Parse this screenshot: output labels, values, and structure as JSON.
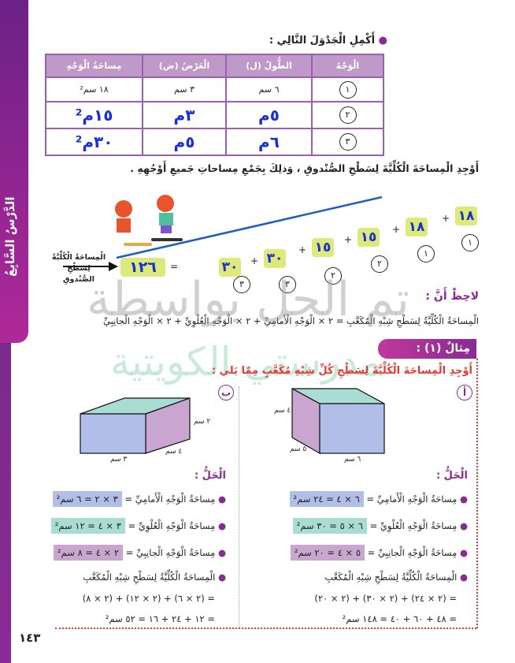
{
  "lesson_tab": "الدَّرْسُ السَّابِعُ",
  "task1": "أَكْمِلِ الْجَدْوَلَ التَّالِي :",
  "table": {
    "headers": [
      "الْوَجْهُ",
      "الطُّولُ (ل)",
      "الْعَرْضُ (ض)",
      "مِساحَةُ الْوَجْهِ"
    ],
    "rows": [
      {
        "face": "١",
        "length": "٦ سم",
        "width": "٣ سم",
        "area": "١٨ سم²"
      },
      {
        "face": "٢",
        "length": "٥م",
        "width": "٣م",
        "area": "١٥م²"
      },
      {
        "face": "٣",
        "length": "٦م",
        "width": "٥م",
        "area": "٣٠م²"
      }
    ]
  },
  "task2": "أَوْجِدِ الْمِساحَةَ الْكُلِّيَّةَ لِسَطْحِ الصُّنْدوقِ ، وَذلِكَ بِجَمْعِ مِساحاتِ جَميعِ أَوْجُهِهِ .",
  "sum": {
    "terms": [
      {
        "value": "١٨",
        "face": "١"
      },
      {
        "value": "١٨",
        "face": "١"
      },
      {
        "value": "١٥",
        "face": "٢"
      },
      {
        "value": "١٥",
        "face": "٢"
      },
      {
        "value": "٣٠",
        "face": "٣"
      },
      {
        "value": "٣٠",
        "face": "٣"
      }
    ],
    "plus": "+",
    "equals": "=",
    "total": "١٢٦",
    "total_label_1": "الْمِساحَةُ الْكُلِّيَّةُ",
    "total_label_2": "لِسَطْحِ الصُّنْدوقِ"
  },
  "note_title": "لاحِظْ أَنَّ :",
  "note_text": "الْمِساحَةُ الْكُلِّيَّةُ لِسَطْحِ شِبْهِ الْمُكَعَّبِ = ٢ × الْوَجْهِ الْأَمامِيِّ + ٢ × الْوَجْهِ الْعُلْوِيِّ + ٢ × الْوَجْهِ الْجانِبِيِّ",
  "watermark_1": "تم الحل بواسطة",
  "watermark_2": "مدرستي الكويتية",
  "example_title": "مِثالٌ (١) :",
  "example_task": "أَوْجِدِ الْمِساحَةَ الْكُلِّيَّةَ لِسَطْحِ كُلِّ شِبْهِ مُكَعَّبٍ مِمّا يَلي :",
  "part_a": {
    "label": "أ",
    "dims": {
      "height": "٤ سم",
      "depth": "٥ سم",
      "length": "٦ سم"
    },
    "solution_title": "الْحَلُّ :",
    "lines": [
      "مِساحَةُ الْوَجْهِ الْأَمامِيِّ =",
      "مِساحَةُ الْوَجْهِ الْعُلْوِيِّ =",
      "مِساحَةُ الْوَجْهِ الْجانِبِيِّ ="
    ],
    "values": [
      "٦ × ٤ = ٢٤ سم²",
      "٦ × ٥ = ٣٠ سم²",
      "٥ × ٤ = ٢٠ سم²"
    ],
    "total_label": "الْمِساحَةُ الْكُلِّيَّةُ لِسَطْحِ شِبْهِ الْمُكَعَّبِ",
    "step1": "= (٢ × ٢٤) + (٢ × ٣٠) + (٢ × ٢٠)",
    "step2": "= ٤٨ + ٦٠ + ٤٠ = ١٤٨ سم²"
  },
  "part_b": {
    "label": "ب",
    "dims": {
      "height": "٢ سم",
      "depth": "٤ سم",
      "length": "٣ سم"
    },
    "solution_title": "الْحَلُّ :",
    "lines": [
      "مِساحَةُ الْوَجْهِ الْأَمامِيِّ =",
      "مِساحَةُ الْوَجْهِ الْعُلْوِيِّ =",
      "مِساحَةُ الْوَجْهِ الْجانِبِيِّ ="
    ],
    "values": [
      "٣ × ٢ = ٦ سم²",
      "٣ × ٤ = ١٢ سم²",
      "٢ × ٤ = ٨ سم²"
    ],
    "total_label": "الْمِساحَةُ الْكُلِّيَّةُ لِسَطْحِ شِبْهِ الْمُكَعَّبِ",
    "step1": "= (٢ × ٦) + (٢ × ١٢) + (٢ × ٨)",
    "step2": "= ١٢ + ٢٤ + ١٦ = ٥٢ سم²"
  },
  "page_number": "١٤٣",
  "colors": {
    "purple": "#8a2a96",
    "front": "#b1bfe8",
    "top": "#a9dcd3",
    "side": "#c8a6cf",
    "answer_box": "#dde97a",
    "handwriting": "#1a2fd6",
    "red": "#e53935"
  }
}
